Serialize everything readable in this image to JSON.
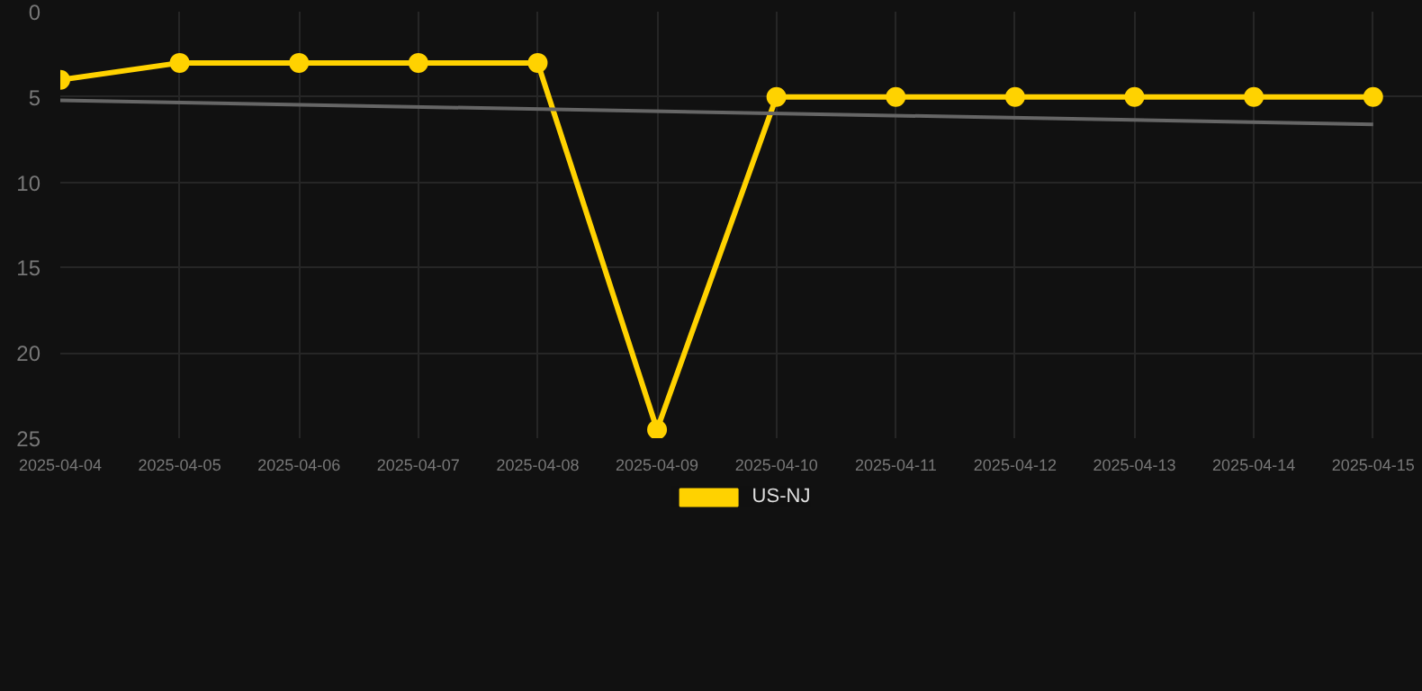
{
  "chart_data": {
    "type": "line",
    "x": [
      "2025-04-04",
      "2025-04-05",
      "2025-04-06",
      "2025-04-07",
      "2025-04-08",
      "2025-04-09",
      "2025-04-10",
      "2025-04-11",
      "2025-04-12",
      "2025-04-13",
      "2025-04-14",
      "2025-04-15"
    ],
    "series": [
      {
        "name": "US-NJ",
        "color": "#ffd200",
        "values": [
          4,
          3,
          3,
          3,
          3,
          24.5,
          5,
          5,
          5,
          5,
          5,
          5
        ],
        "marker": "circle"
      },
      {
        "type": "line",
        "color": "#666666",
        "x": [
          "2025-04-04",
          "2025-04-15"
        ],
        "values": [
          5.2,
          6.6
        ],
        "marker": "none"
      }
    ],
    "xlim": [
      "2025-04-04",
      "2025-04-15T10:00"
    ],
    "xticks": [
      "2025-04-04",
      "2025-04-05",
      "2025-04-06",
      "2025-04-07",
      "2025-04-08",
      "2025-04-09",
      "2025-04-10",
      "2025-04-11",
      "2025-04-12",
      "2025-04-13",
      "2025-04-14",
      "2025-04-15"
    ],
    "ylim": [
      25,
      0
    ],
    "yticks": [
      0,
      5,
      10,
      15,
      20,
      25
    ],
    "grid": true,
    "legend": "bottom",
    "line_style": "solid"
  }
}
